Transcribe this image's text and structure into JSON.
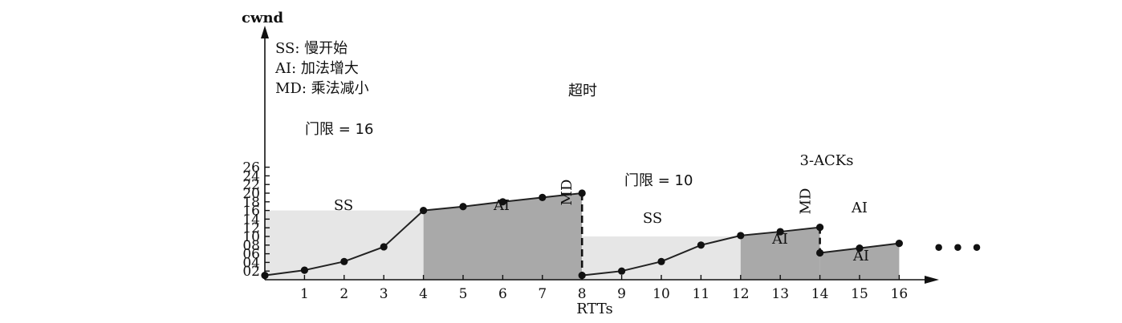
{
  "chart_data": {
    "type": "line",
    "ylabel": "cwnd",
    "xlabel": "RTTs",
    "x_ticks": [
      "1",
      "2",
      "3",
      "4",
      "5",
      "6",
      "7",
      "8",
      "9",
      "10",
      "11",
      "12",
      "13",
      "14",
      "15",
      "16"
    ],
    "y_ticks": [
      "02",
      "04",
      "06",
      "08",
      "10",
      "12",
      "14",
      "16",
      "18",
      "20",
      "22",
      "24",
      "26"
    ],
    "points": [
      {
        "x": 0,
        "y": 1
      },
      {
        "x": 1,
        "y": 2.2
      },
      {
        "x": 2,
        "y": 4.2
      },
      {
        "x": 3,
        "y": 7.6
      },
      {
        "x": 4,
        "y": 16
      },
      {
        "x": 5,
        "y": 16.9
      },
      {
        "x": 6,
        "y": 18
      },
      {
        "x": 7,
        "y": 19
      },
      {
        "x": 8,
        "y": 20
      },
      {
        "x": 8,
        "y": 1
      },
      {
        "x": 9,
        "y": 2
      },
      {
        "x": 10,
        "y": 4.2
      },
      {
        "x": 11,
        "y": 8
      },
      {
        "x": 12,
        "y": 10.2
      },
      {
        "x": 13,
        "y": 11.1
      },
      {
        "x": 14,
        "y": 12.1
      },
      {
        "x": 14,
        "y": 6.2
      },
      {
        "x": 15,
        "y": 7.3
      },
      {
        "x": 16,
        "y": 8.4
      }
    ],
    "legend": [
      {
        "abbr": "SS: ",
        "text": "慢开始"
      },
      {
        "abbr": "AI: ",
        "text": "加法增大"
      },
      {
        "abbr": "MD: ",
        "text": "乘法减小"
      }
    ],
    "regions": [
      {
        "label": "SS",
        "x": [
          0,
          4
        ],
        "top": 16,
        "shade": "light"
      },
      {
        "label": "AI",
        "x": [
          4,
          8
        ],
        "shade": "dark"
      },
      {
        "label": "SS",
        "x": [
          8,
          12
        ],
        "top": 10,
        "shade": "light"
      },
      {
        "label": "AI",
        "x": [
          12,
          14
        ],
        "shade": "dark"
      },
      {
        "label": "AI",
        "x": [
          14,
          16
        ],
        "shade": "dark"
      }
    ],
    "annotations": {
      "threshold1": "门限 = 16",
      "threshold2": "门限 = 10",
      "timeout": "超时",
      "three_acks": "3-ACKs",
      "md1": "MD",
      "md2": "MD",
      "ellipsis": "• • •"
    },
    "colors": {
      "light": "#e6e6e6",
      "dark": "#a9a9a9",
      "line": "#222222"
    }
  }
}
